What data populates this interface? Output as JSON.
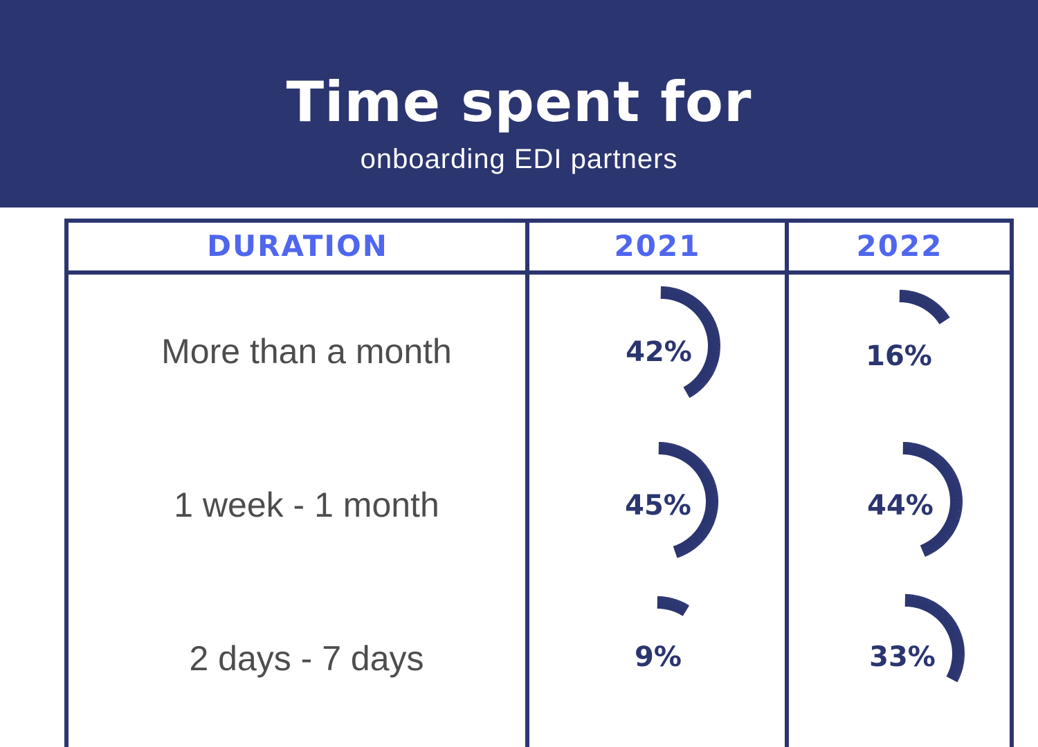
{
  "title": "Time spent for",
  "subtitle": "onboarding EDI partners",
  "chart_data": {
    "type": "table",
    "columns": [
      "DURATION",
      "2021",
      "2022"
    ],
    "rows": [
      {
        "duration": "More than a month",
        "v2021": 42,
        "v2022": 16,
        "label2021": "42%",
        "label2022": "16%"
      },
      {
        "duration": "1 week - 1 month",
        "v2021": 45,
        "v2022": 44,
        "label2021": "45%",
        "label2022": "44%"
      },
      {
        "duration": "2 days - 7 days",
        "v2021": 9,
        "v2022": 33,
        "label2021": "9%",
        "label2022": "33%"
      }
    ],
    "unit": "%",
    "colors": {
      "banner": "#2b3570",
      "header_text": "#4f66ee",
      "gauge": "#2b3570",
      "row_text": "#4d4d4d"
    }
  }
}
